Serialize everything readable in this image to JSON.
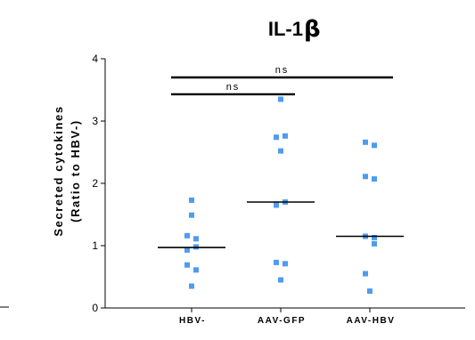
{
  "chart_data": {
    "type": "scatter",
    "title": "IL-1",
    "title_symbol": "β",
    "ylabel_line1": "Secreted cytokines",
    "ylabel_line2": "(Ratio to HBV-)",
    "xlabel": "",
    "ylim": [
      0,
      4
    ],
    "yticks": [
      "0",
      "1",
      "2",
      "3",
      "4"
    ],
    "categories": [
      "HBV-",
      "AAV-GFP",
      "AAV-HBV"
    ],
    "series": [
      {
        "values": [
          1.73,
          1.49,
          1.16,
          1.11,
          0.98,
          0.93,
          0.69,
          0.61,
          0.35
        ],
        "median": 0.97
      },
      {
        "values": [
          3.35,
          2.76,
          2.74,
          2.52,
          1.7,
          1.65,
          0.73,
          0.71,
          0.45
        ],
        "median": 1.7
      },
      {
        "values": [
          2.66,
          2.61,
          2.11,
          2.07,
          1.15,
          1.13,
          1.03,
          0.55,
          0.27
        ],
        "median": 1.15
      }
    ],
    "significance": [
      {
        "from": 0,
        "to": 2,
        "y": 3.7,
        "label": "ns"
      },
      {
        "from": 0,
        "to": 1,
        "y": 3.43,
        "label": "ns"
      }
    ],
    "point_color": "#4f9bef",
    "line_color": "#000000",
    "grid": false,
    "legend": "none"
  }
}
